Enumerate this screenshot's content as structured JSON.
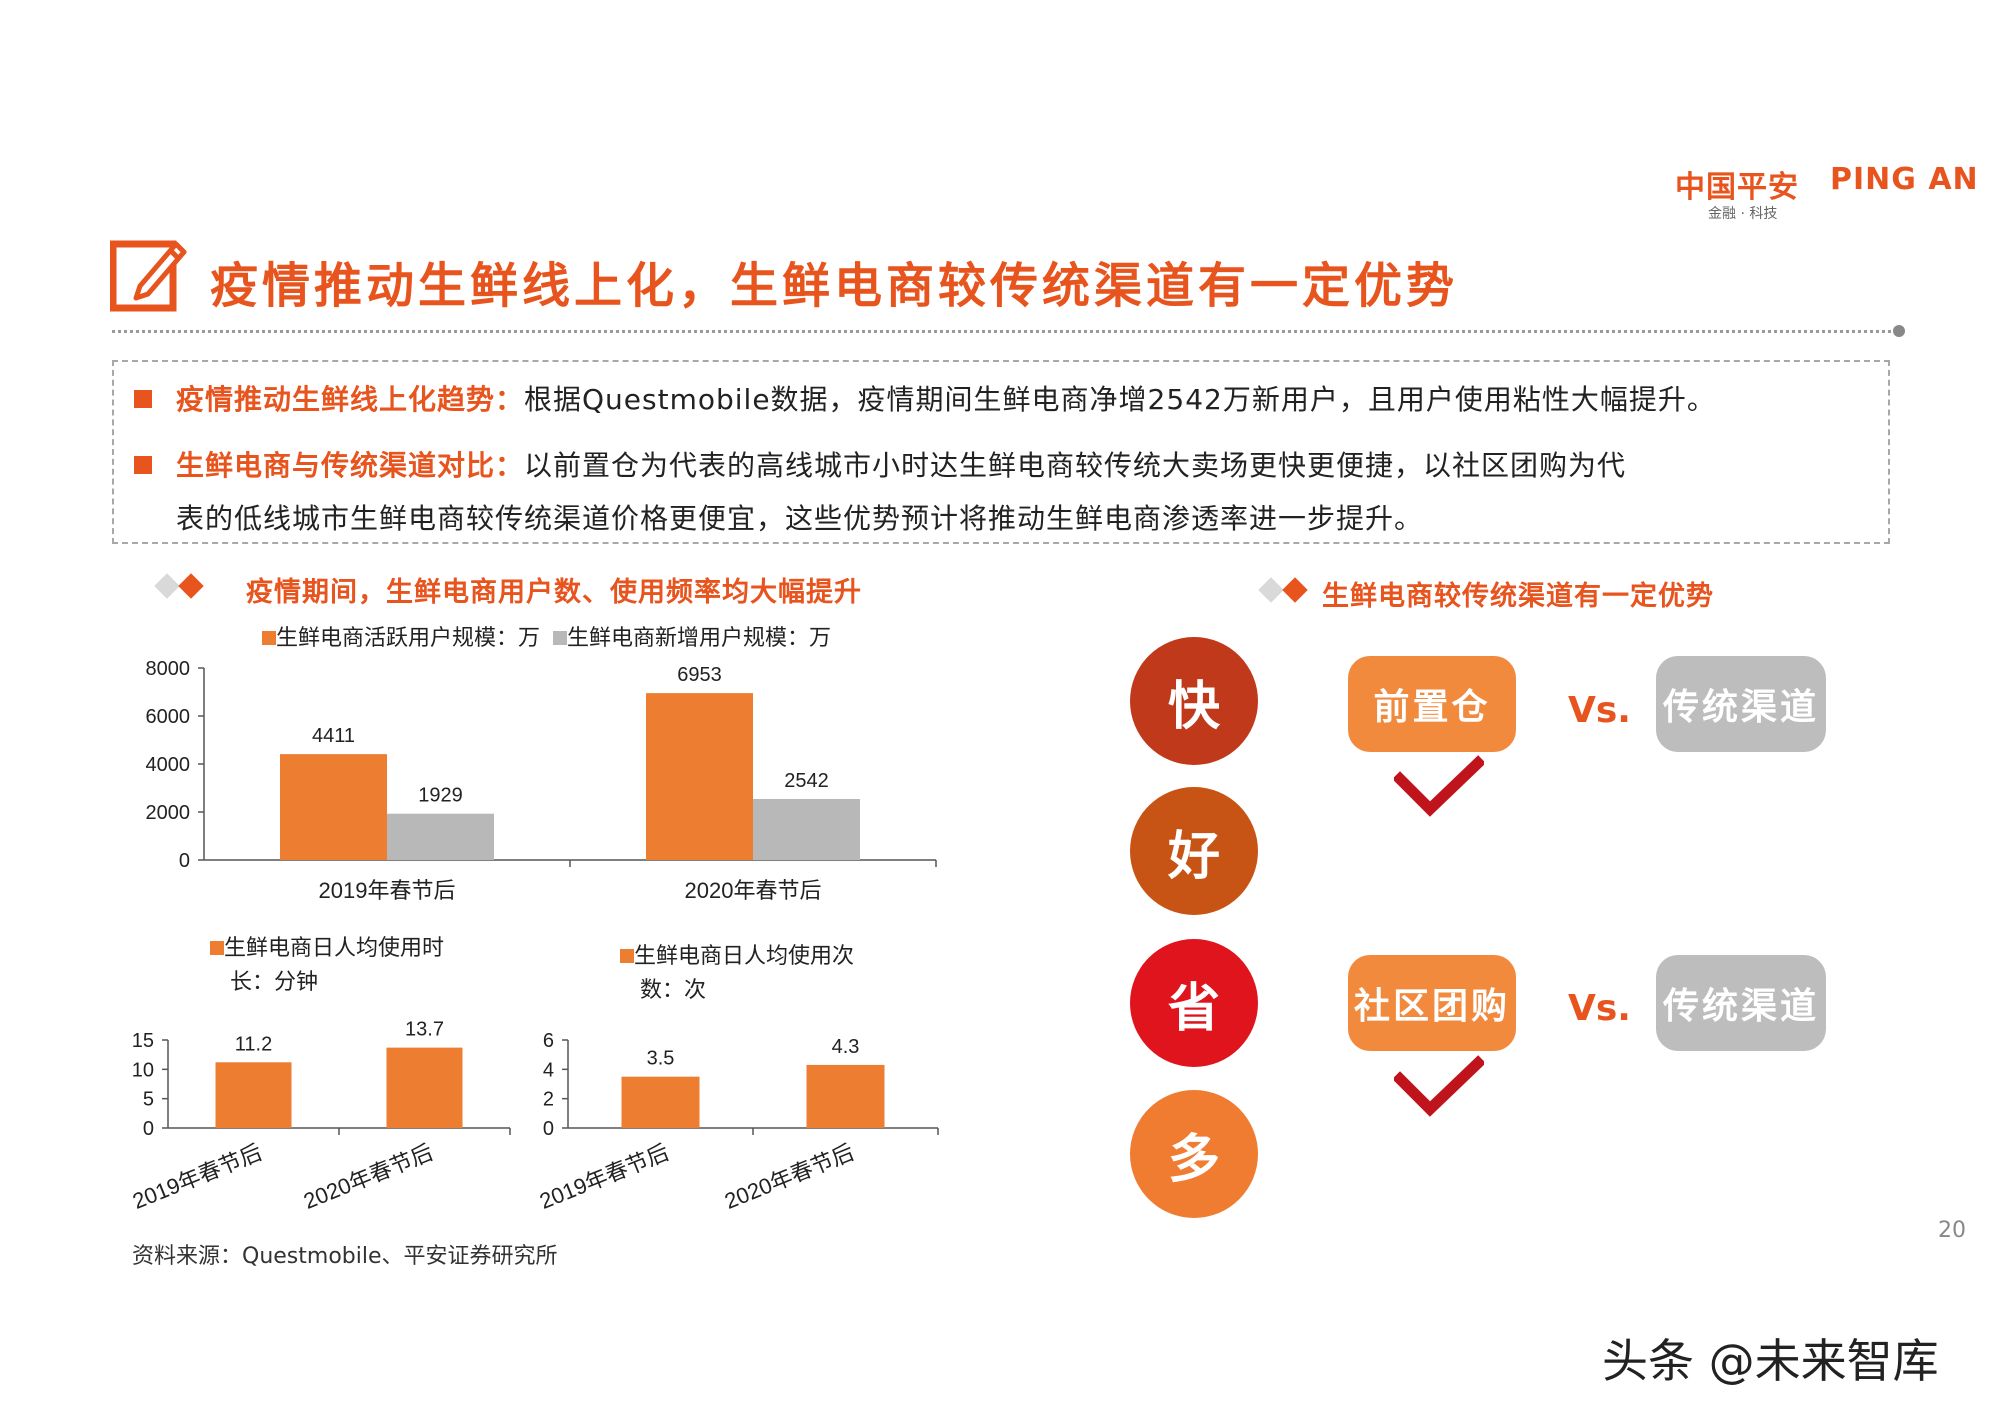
{
  "logo": {
    "cn": "中国平安",
    "en": "PING AN",
    "sub": "金融 · 科技"
  },
  "title": "疫情推动生鲜线上化，生鲜电商较传统渠道有一定优势",
  "summary": [
    {
      "key": "疫情推动生鲜线上化趋势：",
      "text": "根据Questmobile数据，疫情期间生鲜电商净增2542万新用户，且用户使用粘性大幅提升。",
      "cont": ""
    },
    {
      "key": "生鲜电商与传统渠道对比：",
      "text": "以前置仓为代表的高线城市小时达生鲜电商较传统大卖场更快更便捷，以社区团购为代",
      "cont": "表的低线城市生鲜电商较传统渠道价格更便宜，这些优势预计将推动生鲜电商渗透率进一步提升。"
    }
  ],
  "left_section": {
    "title": "疫情期间，生鲜电商用户数、使用频率均大幅提升"
  },
  "right_section": {
    "title": "生鲜电商较传统渠道有一定优势"
  },
  "chart_data": [
    {
      "type": "bar",
      "categories": [
        "2019年春节后",
        "2020年春节后"
      ],
      "series": [
        {
          "name": "生鲜电商活跃用户规模：万",
          "values": [
            4411,
            6953
          ],
          "color": "#ed7d31"
        },
        {
          "name": "生鲜电商新增用户规模：万",
          "values": [
            1929,
            2542
          ],
          "color": "#b8b8b8"
        }
      ],
      "ylim": [
        0,
        8000
      ],
      "yticks": [
        0,
        2000,
        4000,
        6000,
        8000
      ],
      "legend": "top"
    },
    {
      "type": "bar",
      "categories": [
        "2019年春节后",
        "2020年春节后"
      ],
      "series": [
        {
          "name": "生鲜电商日人均使用时长：分钟",
          "values": [
            11.2,
            13.7
          ],
          "color": "#ed7d31"
        }
      ],
      "legend_lines": [
        "生鲜电商日人均使用时",
        "长：分钟"
      ],
      "ylim": [
        0,
        15
      ],
      "yticks": [
        0,
        5,
        10,
        15
      ],
      "legend": "top"
    },
    {
      "type": "bar",
      "categories": [
        "2019年春节后",
        "2020年春节后"
      ],
      "series": [
        {
          "name": "生鲜电商日人均使用次数：次",
          "values": [
            3.5,
            4.3
          ],
          "color": "#ed7d31"
        }
      ],
      "legend_lines": [
        "生鲜电商日人均使用次",
        "数：次"
      ],
      "ylim": [
        0,
        6
      ],
      "yticks": [
        0,
        2,
        4,
        6
      ],
      "legend": "top"
    }
  ],
  "advantages": {
    "circles": [
      {
        "label": "快",
        "color": "#c0391a"
      },
      {
        "label": "好",
        "color": "#c75414"
      },
      {
        "label": "省",
        "color": "#e0141c"
      },
      {
        "label": "多",
        "color": "#f07c32"
      }
    ],
    "comparisons": [
      {
        "left": "前置仓",
        "vs": "Vs.",
        "right": "传统渠道"
      },
      {
        "left": "社区团购",
        "vs": "Vs.",
        "right": "传统渠道"
      }
    ],
    "colors": {
      "pill_orange": "#f28a3e",
      "pill_gray": "#bdbdbd",
      "check": "#c0141c"
    }
  },
  "source": "资料来源：Questmobile、平安证券研究所",
  "page_number": "20",
  "watermark": "头条 @未来智库"
}
